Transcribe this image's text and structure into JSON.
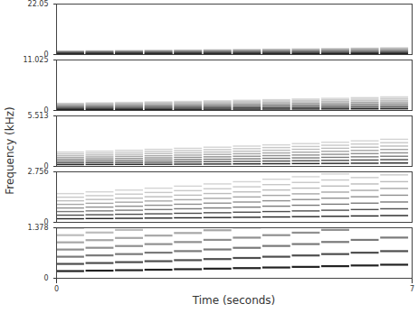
{
  "chart_data": {
    "type": "spectrogram",
    "x_label": "Time (seconds)",
    "y_label": "Frequency (kHz)",
    "xlim": [
      0,
      7
    ],
    "xticks": [
      0,
      7
    ],
    "panels": [
      {
        "ylim": [
          0,
          22.05
        ],
        "yticks": [
          0,
          22.05
        ]
      },
      {
        "ylim": [
          0,
          11.025
        ],
        "yticks": [
          0,
          11.025
        ]
      },
      {
        "ylim": [
          0,
          5.513
        ],
        "yticks": [
          0,
          5.513
        ]
      },
      {
        "ylim": [
          0,
          2.756
        ],
        "yticks": [
          0,
          2.756
        ]
      },
      {
        "ylim": [
          0,
          1.378
        ],
        "yticks": [
          0,
          1.378
        ]
      }
    ],
    "partial_levels": [
      1,
      0.8,
      0.6,
      0.5,
      0.4,
      0.3,
      0.25,
      0.2
    ],
    "notes": [
      {
        "onset": 0,
        "offset": 0.55,
        "partials": [
          0.196,
          0.392,
          0.588,
          0.784,
          0.98,
          1.176,
          1.372,
          1.568
        ]
      },
      {
        "onset": 0.58,
        "offset": 1.13,
        "partials": [
          0.208,
          0.416,
          0.624,
          0.832,
          1.04,
          1.248,
          1.456,
          1.664
        ]
      },
      {
        "onset": 1.16,
        "offset": 1.71,
        "partials": [
          0.22,
          0.44,
          0.66,
          0.88,
          1.1,
          1.32,
          1.54,
          1.76
        ]
      },
      {
        "onset": 1.74,
        "offset": 2.29,
        "partials": [
          0.233,
          0.466,
          0.699,
          0.932,
          1.165,
          1.398,
          1.631,
          1.864
        ]
      },
      {
        "onset": 2.32,
        "offset": 2.87,
        "partials": [
          0.247,
          0.494,
          0.741,
          0.988,
          1.235,
          1.482,
          1.729,
          1.976
        ]
      },
      {
        "onset": 2.9,
        "offset": 3.45,
        "partials": [
          0.262,
          0.524,
          0.786,
          1.048,
          1.31,
          1.572,
          1.834,
          2.096
        ]
      },
      {
        "onset": 3.48,
        "offset": 4.03,
        "partials": [
          0.277,
          0.554,
          0.831,
          1.108,
          1.385,
          1.662,
          1.939,
          2.216
        ]
      },
      {
        "onset": 4.06,
        "offset": 4.61,
        "partials": [
          0.294,
          0.588,
          0.882,
          1.176,
          1.47,
          1.764,
          2.058,
          2.352
        ]
      },
      {
        "onset": 4.64,
        "offset": 5.19,
        "partials": [
          0.311,
          0.622,
          0.933,
          1.244,
          1.555,
          1.866,
          2.177,
          2.488
        ]
      },
      {
        "onset": 5.22,
        "offset": 5.77,
        "partials": [
          0.33,
          0.66,
          0.99,
          1.32,
          1.65,
          1.98,
          2.31,
          2.64
        ]
      },
      {
        "onset": 5.8,
        "offset": 6.35,
        "partials": [
          0.349,
          0.698,
          1.047,
          1.396,
          1.745,
          2.094,
          2.443,
          2.792
        ]
      },
      {
        "onset": 6.38,
        "offset": 6.93,
        "partials": [
          0.37,
          0.74,
          1.11,
          1.48,
          1.85,
          2.22,
          2.59,
          2.96
        ]
      }
    ]
  }
}
